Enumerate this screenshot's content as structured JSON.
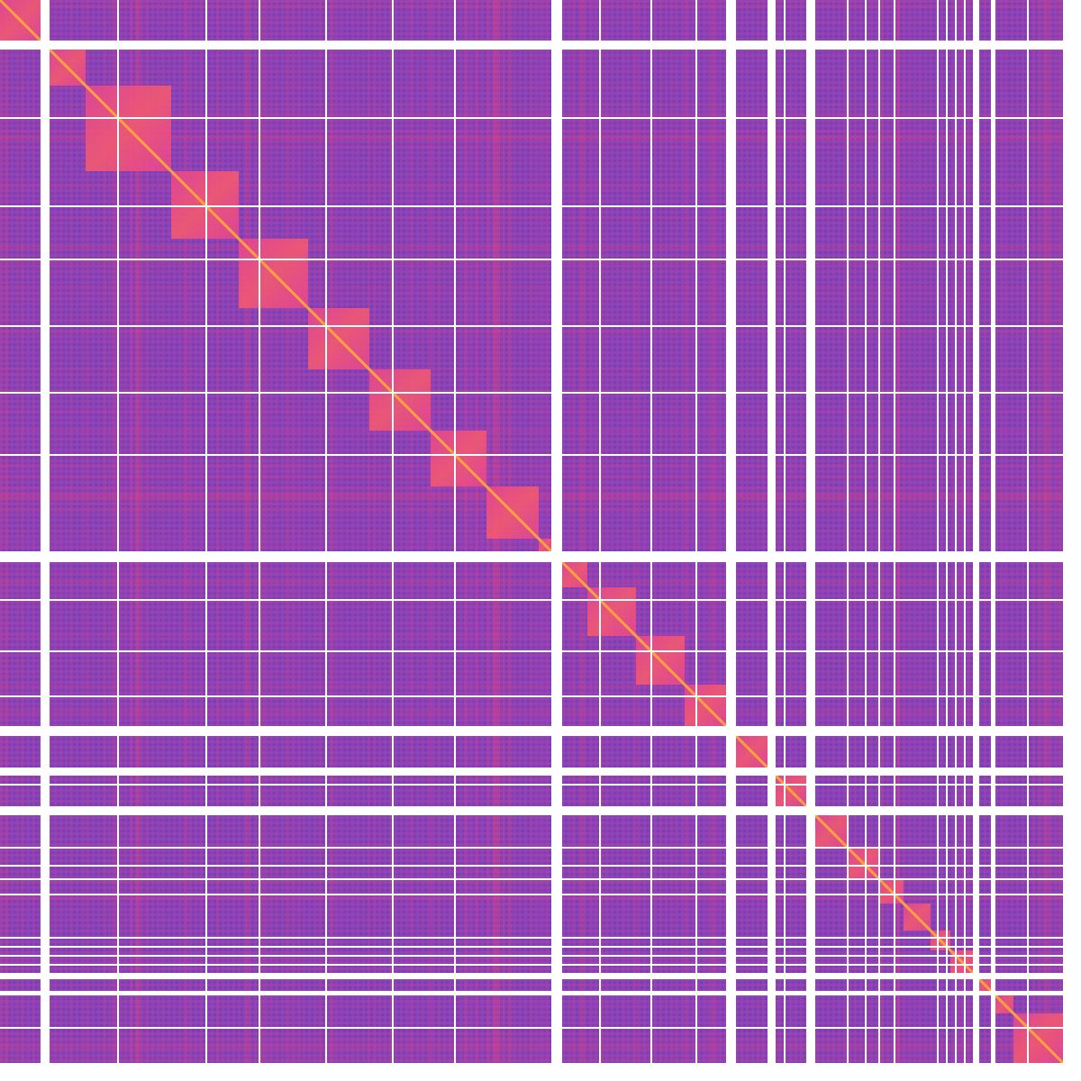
{
  "chart_data": {
    "type": "heatmap",
    "title": "",
    "xlabel": "",
    "ylabel": "",
    "matrix_extent": [
      0,
      1200
    ],
    "colormap": "plasma",
    "colors": {
      "background": "#ffffff",
      "gap": "#ffffff",
      "low": "#7a3fb0",
      "mid": "#b23fb5",
      "high": "#f5407a",
      "diagonal": "#f9a83a"
    },
    "blocks": [
      {
        "start": 0,
        "end": 45
      },
      {
        "start": 55,
        "end": 95
      },
      {
        "start": 95,
        "end": 190
      },
      {
        "start": 190,
        "end": 265
      },
      {
        "start": 265,
        "end": 342
      },
      {
        "start": 342,
        "end": 410
      },
      {
        "start": 410,
        "end": 478
      },
      {
        "start": 478,
        "end": 540
      },
      {
        "start": 540,
        "end": 598
      },
      {
        "start": 598,
        "end": 612
      },
      {
        "start": 624,
        "end": 652
      },
      {
        "start": 652,
        "end": 706
      },
      {
        "start": 706,
        "end": 760
      },
      {
        "start": 760,
        "end": 806
      },
      {
        "start": 817,
        "end": 852
      },
      {
        "start": 861,
        "end": 895
      },
      {
        "start": 905,
        "end": 940
      },
      {
        "start": 940,
        "end": 975
      },
      {
        "start": 975,
        "end": 1003
      },
      {
        "start": 1003,
        "end": 1033
      },
      {
        "start": 1033,
        "end": 1055
      },
      {
        "start": 1055,
        "end": 1080
      },
      {
        "start": 1087,
        "end": 1100
      },
      {
        "start": 1105,
        "end": 1125
      },
      {
        "start": 1125,
        "end": 1180
      }
    ],
    "wide_gaps": [
      {
        "start": 45,
        "end": 55
      },
      {
        "start": 612,
        "end": 624
      },
      {
        "start": 806,
        "end": 817
      },
      {
        "start": 852,
        "end": 861
      },
      {
        "start": 895,
        "end": 905
      },
      {
        "start": 1080,
        "end": 1087
      },
      {
        "start": 1100,
        "end": 1105
      },
      {
        "start": 1180,
        "end": 1200
      }
    ],
    "thin_gaps": [
      130,
      228,
      287,
      361,
      435,
      504,
      665,
      722,
      772,
      870,
      940,
      960,
      975,
      992,
      1040,
      1050,
      1060,
      1070,
      1140
    ]
  }
}
